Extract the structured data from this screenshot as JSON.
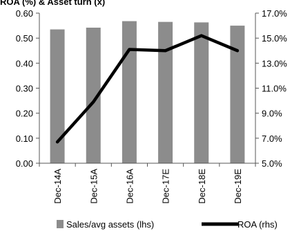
{
  "chart_data": {
    "type": "bar",
    "title": "ROA (%) & Asset turn (x)",
    "categories": [
      "Dec-14A",
      "Dec-15A",
      "Dec-16A",
      "Dec-17E",
      "Dec-18E",
      "Dec-19E"
    ],
    "series": [
      {
        "name": "Sales/avg assets (lhs)",
        "type": "bar",
        "axis": "left",
        "color": "#8c8c8c",
        "values": [
          0.535,
          0.542,
          0.568,
          0.565,
          0.563,
          0.55
        ]
      },
      {
        "name": "ROA (rhs)",
        "type": "line",
        "axis": "right",
        "color": "#000000",
        "values": [
          6.7,
          9.9,
          14.1,
          14.0,
          15.2,
          14.0
        ]
      }
    ],
    "y_left": {
      "min": 0,
      "max": 0.6,
      "ticks": [
        "0.00",
        "0.10",
        "0.20",
        "0.30",
        "0.40",
        "0.50",
        "0.60"
      ]
    },
    "y_right": {
      "min": 5.0,
      "max": 17.0,
      "ticks": [
        "5.0%",
        "7.0%",
        "9.0%",
        "11.0%",
        "13.0%",
        "15.0%",
        "17.0%"
      ]
    },
    "grid": false,
    "legend": "bottom"
  }
}
